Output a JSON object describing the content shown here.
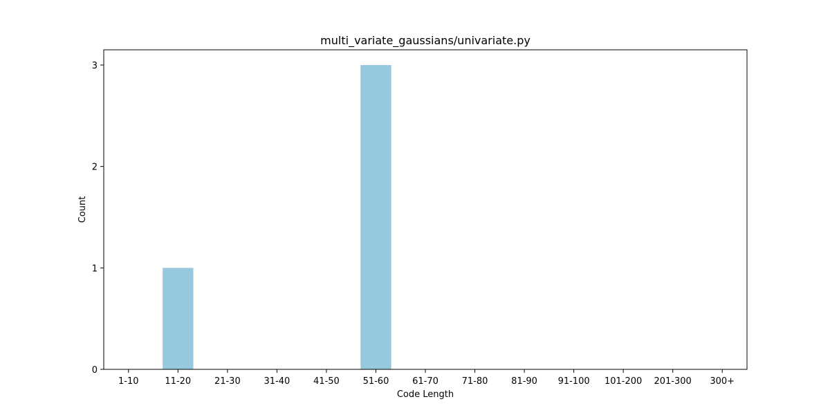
{
  "chart_data": {
    "type": "bar",
    "title": "multi_variate_gaussians/univariate.py",
    "xlabel": "Code Length",
    "ylabel": "Count",
    "categories": [
      "1-10",
      "11-20",
      "21-30",
      "31-40",
      "41-50",
      "51-60",
      "61-70",
      "71-80",
      "81-90",
      "91-100",
      "101-200",
      "201-300",
      "300+"
    ],
    "values": [
      0,
      1,
      0,
      0,
      0,
      3,
      0,
      0,
      0,
      0,
      0,
      0,
      0
    ],
    "ylim": [
      0,
      3.15
    ],
    "yticks": [
      0,
      1,
      2,
      3
    ],
    "grid": false,
    "bar_color": "#96c9de"
  }
}
